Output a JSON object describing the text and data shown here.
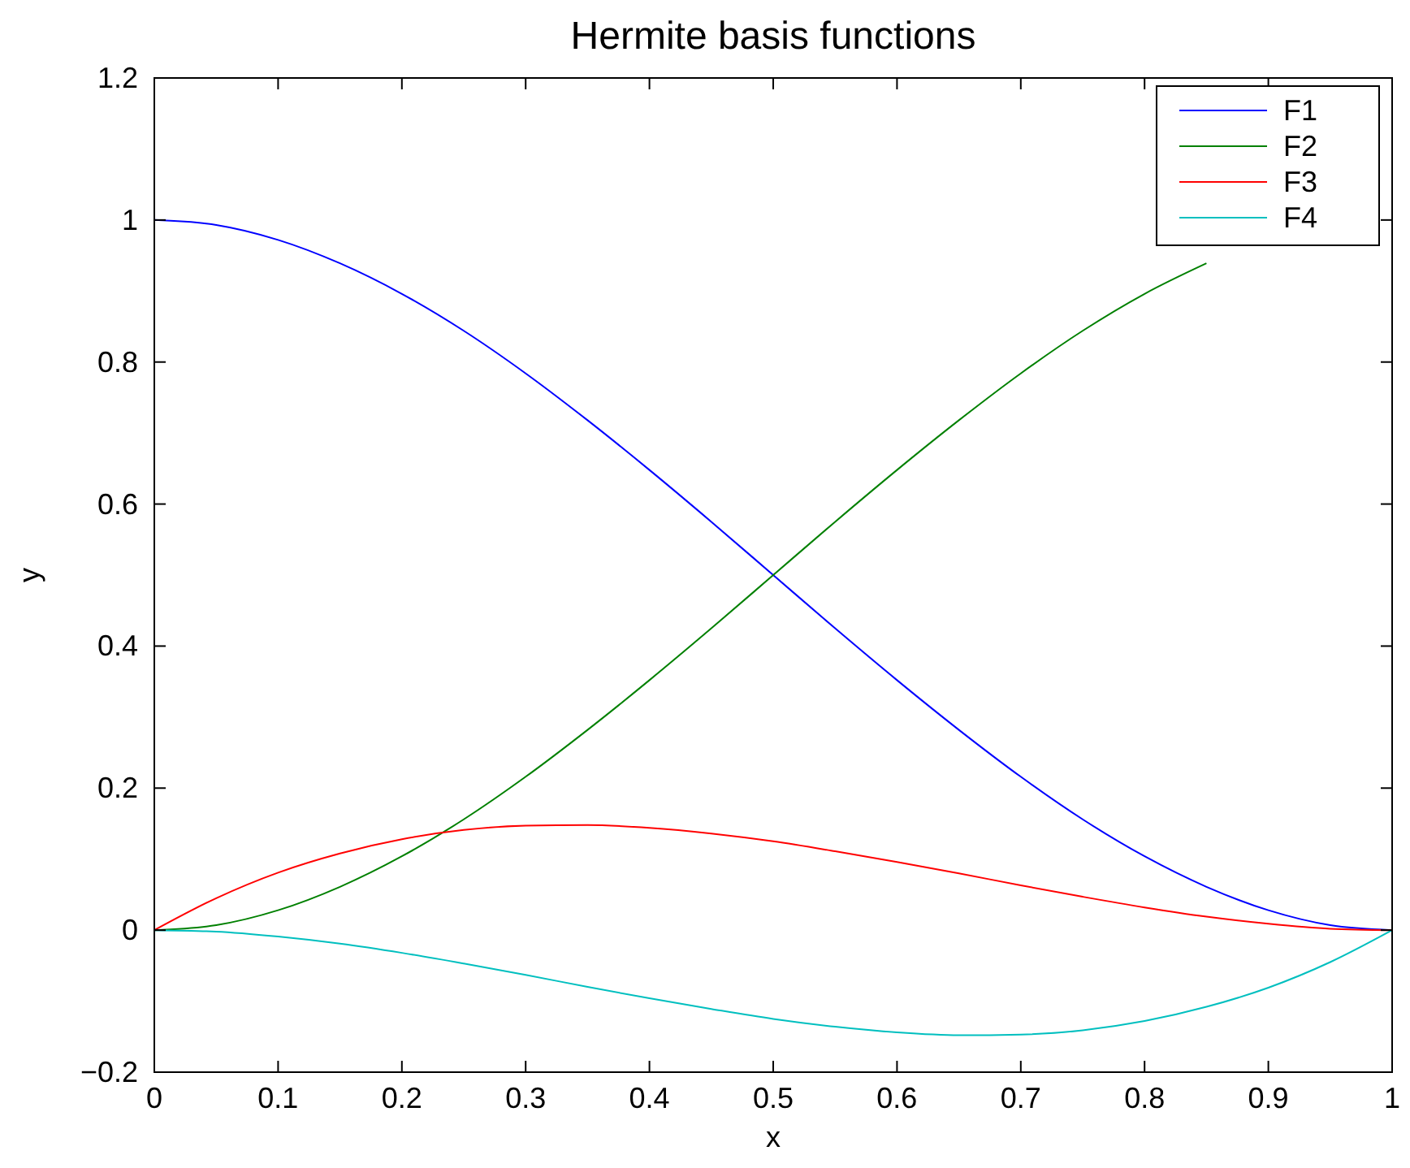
{
  "chart_data": {
    "type": "line",
    "title": "Hermite basis functions",
    "xlabel": "x",
    "ylabel": "y",
    "x": [
      0,
      0.05,
      0.1,
      0.15,
      0.2,
      0.25,
      0.3,
      0.35,
      0.4,
      0.45,
      0.5,
      0.55,
      0.6,
      0.65,
      0.7,
      0.75,
      0.8,
      0.85,
      0.9,
      0.95,
      1
    ],
    "series": [
      {
        "name": "F1",
        "color": "#0000ff",
        "values": [
          1,
          0.993,
          0.972,
          0.939,
          0.896,
          0.844,
          0.784,
          0.718,
          0.648,
          0.575,
          0.5,
          0.425,
          0.352,
          0.282,
          0.216,
          0.156,
          0.104,
          0.061,
          0.028,
          0.007,
          0
        ]
      },
      {
        "name": "F2",
        "color": "#008000",
        "values": [
          0,
          0.007,
          0.028,
          0.061,
          0.104,
          0.156,
          0.216,
          0.282,
          0.352,
          0.425,
          0.5,
          0.575,
          0.648,
          0.718,
          0.784,
          0.844,
          0.896,
          0.939,
          null,
          null,
          null
        ]
      },
      {
        "name": "F3",
        "color": "#ff0000",
        "values": [
          0,
          0.045,
          0.081,
          0.108,
          0.128,
          0.141,
          0.147,
          0.148,
          0.144,
          0.136,
          0.125,
          0.111,
          0.096,
          0.08,
          0.063,
          0.047,
          0.032,
          0.019,
          0.009,
          0.002,
          0
        ]
      },
      {
        "name": "F4",
        "color": "#00bfbf",
        "values": [
          0,
          -0.002,
          -0.009,
          -0.019,
          -0.032,
          -0.047,
          -0.063,
          -0.08,
          -0.096,
          -0.111,
          -0.125,
          -0.136,
          -0.144,
          -0.148,
          -0.147,
          -0.141,
          -0.128,
          -0.108,
          -0.081,
          -0.045,
          0
        ]
      }
    ],
    "xlim": [
      0,
      1
    ],
    "xticks": [
      0,
      0.1,
      0.2,
      0.3,
      0.4,
      0.5,
      0.6,
      0.7,
      0.8,
      0.9,
      1
    ],
    "ylim": [
      -0.2,
      1.2
    ],
    "yticks": [
      {
        "value": -0.2,
        "label": "−0.2"
      },
      0,
      0.2,
      0.4,
      0.6,
      0.8,
      1,
      1.2
    ],
    "legend": "top right",
    "line_style": "solid"
  }
}
